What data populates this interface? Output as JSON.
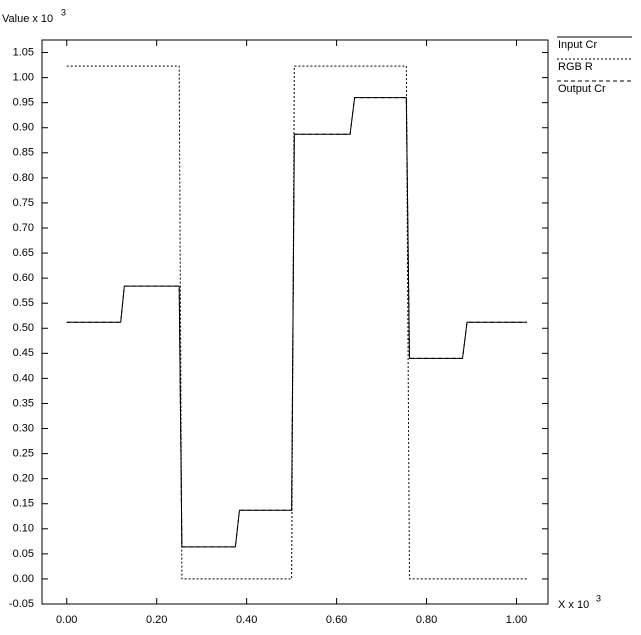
{
  "chart_data": {
    "type": "line",
    "y_label": {
      "text": "Value x 10",
      "exponent": "3"
    },
    "x_label": {
      "text": "X x 10",
      "exponent": "3"
    },
    "xlim": [
      -0.055,
      1.07
    ],
    "ylim": [
      -0.05,
      1.075
    ],
    "xticks": [
      {
        "value": 0,
        "label": "0.00"
      },
      {
        "value": 0.2,
        "label": "0.20"
      },
      {
        "value": 0.4,
        "label": "0.40"
      },
      {
        "value": 0.6,
        "label": "0.60"
      },
      {
        "value": 0.8,
        "label": "0.80"
      },
      {
        "value": 1,
        "label": "1.00"
      }
    ],
    "yticks": [
      -0.05,
      {
        "value": 0,
        "label": "0.00"
      },
      0.05,
      {
        "value": 0.1,
        "label": "0.10"
      },
      0.15,
      {
        "value": 0.2,
        "label": "0.20"
      },
      0.25,
      {
        "value": 0.3,
        "label": "0.30"
      },
      0.35,
      {
        "value": 0.4,
        "label": "0.40"
      },
      0.45,
      {
        "value": 0.5,
        "label": "0.50"
      },
      0.55,
      {
        "value": 0.6,
        "label": "0.60"
      },
      0.65,
      {
        "value": 0.7,
        "label": "0.70"
      },
      0.75,
      {
        "value": 0.8,
        "label": "0.80"
      },
      0.85,
      {
        "value": 0.9,
        "label": "0.90"
      },
      0.95,
      {
        "value": 1,
        "label": "1.00"
      },
      1.05
    ],
    "legend_position": "right",
    "series": [
      {
        "name": "Input Cr",
        "color": "#000000",
        "dash": "solid",
        "x": [
          0,
          0.12,
          0.128,
          0.25,
          0.256,
          0.375,
          0.384,
          0.5,
          0.506,
          0.63,
          0.64,
          0.755,
          0.762,
          0.88,
          0.89,
          1.023
        ],
        "values": [
          0.512,
          0.512,
          0.584,
          0.584,
          0.064,
          0.064,
          0.137,
          0.137,
          0.887,
          0.887,
          0.96,
          0.96,
          0.44,
          0.44,
          0.512,
          0.512
        ]
      },
      {
        "name": "RGB R",
        "color": "#000000",
        "dash": "dotted",
        "x": [
          0,
          0.25,
          0.256,
          0.5,
          0.506,
          0.755,
          0.762,
          1.023
        ],
        "values": [
          1.023,
          1.023,
          0,
          0,
          1.023,
          1.023,
          0,
          0
        ]
      },
      {
        "name": "Output Cr",
        "color": "#000000",
        "dash": "dashed",
        "x": [
          0,
          0.12,
          0.128,
          0.25,
          0.256,
          0.375,
          0.384,
          0.5,
          0.506,
          0.63,
          0.64,
          0.755,
          0.762,
          0.88,
          0.89,
          1.023
        ],
        "values": [
          0.512,
          0.512,
          0.584,
          0.584,
          0.064,
          0.064,
          0.137,
          0.137,
          0.887,
          0.887,
          0.96,
          0.96,
          0.44,
          0.44,
          0.512,
          0.512
        ]
      }
    ]
  }
}
